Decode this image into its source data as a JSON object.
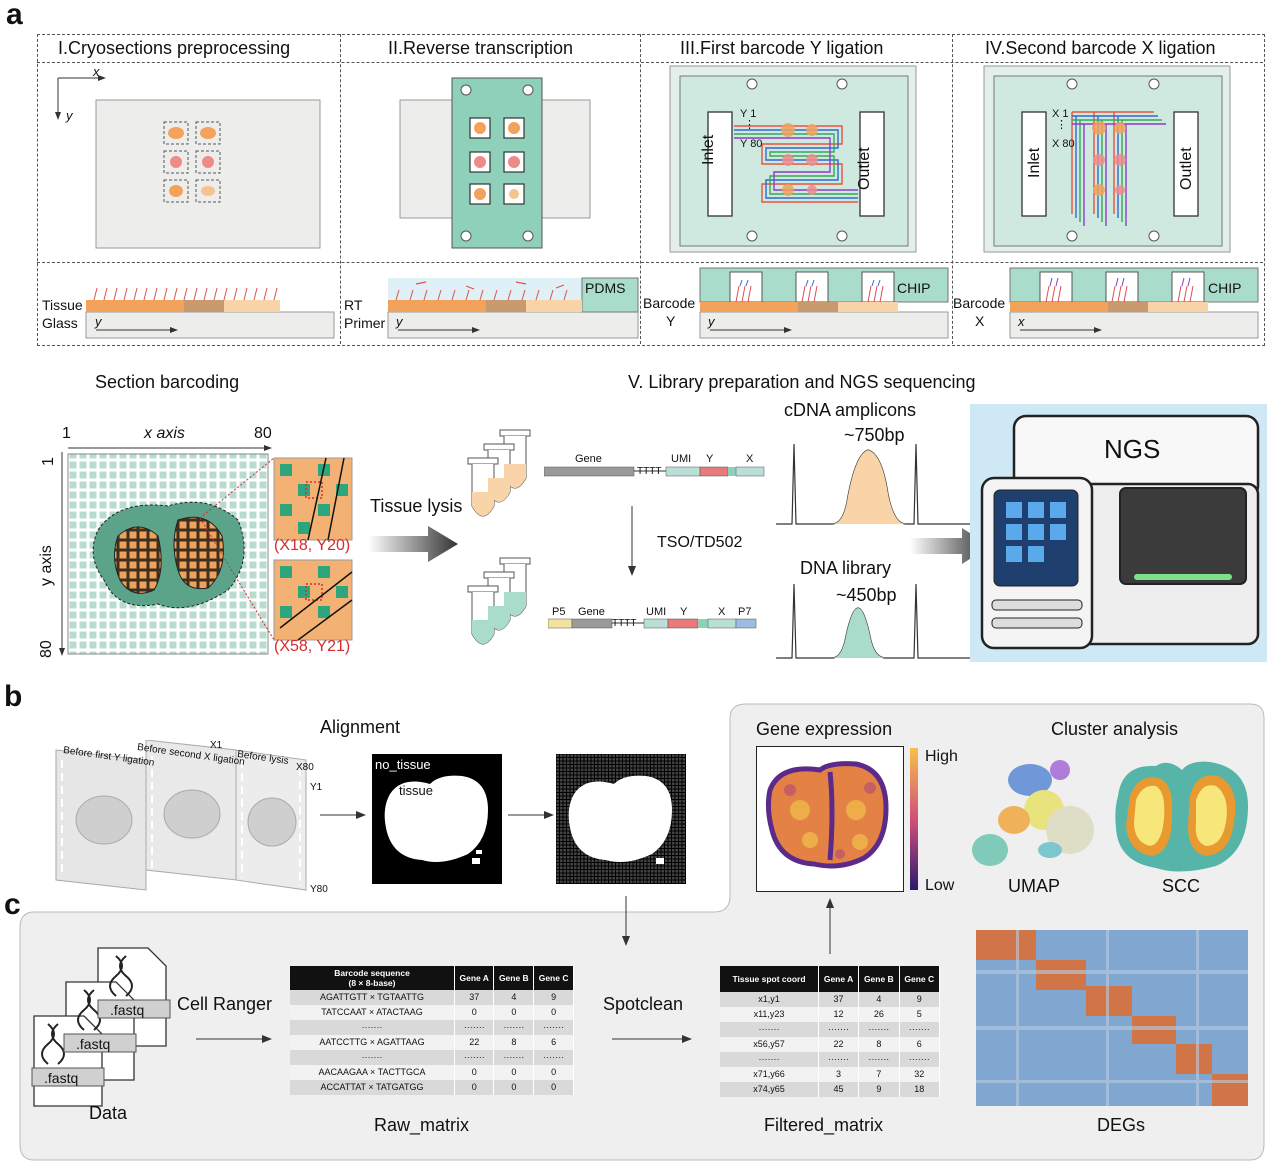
{
  "panels": {
    "a": "a",
    "b": "b",
    "c": "c"
  },
  "steps": {
    "s1": "I.Cryosections preprocessing",
    "s2": "II.Reverse transcription",
    "s3": "III.First barcode Y ligation",
    "s4": "IV.Second barcode X ligation"
  },
  "step1": {
    "x": "x",
    "y": "y",
    "tissue": "Tissue",
    "glass": "Glass",
    "yaxis": "y"
  },
  "step2": {
    "rt": "RT",
    "primer": "Primer",
    "pdms": "PDMS",
    "yaxis": "y"
  },
  "step3": {
    "y1": "Y 1",
    "dots": "⋮",
    "y80": "Y 80",
    "inlet": "Inlet",
    "outlet": "Outlet",
    "barcode": "Barcode",
    "bl": "Y",
    "chip": "CHIP",
    "yaxis": "y"
  },
  "step4": {
    "x1": "X 1",
    "dots": "⋮",
    "x80": "X 80",
    "inlet": "Inlet",
    "outlet": "Outlet",
    "barcode": "Barcode",
    "bl": "X",
    "chip": "CHIP",
    "xaxis": "x"
  },
  "section": {
    "title": "Section barcoding",
    "x_start": "1",
    "x_label": "x axis",
    "x_end": "80",
    "y_start": "1",
    "y_label": "y axis",
    "y_end": "80",
    "coord1": "(X18, Y20)",
    "coord2": "(X58, Y21)"
  },
  "library": {
    "title": "V. Library preparation and NGS sequencing",
    "lysis": "Tissue lysis",
    "gene": "Gene",
    "tttt": "TTTT",
    "umi": "UMI",
    "y": "Y",
    "x": "X",
    "tso": "TSO/TD502",
    "p5": "P5",
    "p7": "P7",
    "cdna": "cDNA amplicons",
    "cdna_bp": "~750bp",
    "dna": "DNA library",
    "dna_bp": "~450bp",
    "ngs": "NGS"
  },
  "alignment": {
    "title": "Alignment",
    "l1": "Before first Y ligation",
    "l2": "Before second X ligation",
    "l3": "Before lysis",
    "x1": "X1",
    "x80": "X80",
    "y1": "Y1",
    "y80": "Y80",
    "no_tissue": "no_tissue",
    "tissue": "tissue"
  },
  "expression": {
    "title": "Gene expression",
    "high": "High",
    "low": "Low"
  },
  "cluster": {
    "title": "Cluster analysis",
    "umap": "UMAP",
    "scc": "SCC"
  },
  "data": {
    "file": ".fastq",
    "label": "Data",
    "cellranger": "Cell Ranger",
    "spotclean": "Spotclean"
  },
  "raw_matrix": {
    "label": "Raw_matrix",
    "headers": [
      "Barcode sequence\n(8 × 8-base)",
      "Gene A",
      "Gene B",
      "Gene C"
    ],
    "rows": [
      [
        "AGATTGTT × TGTAATTG",
        "37",
        "4",
        "9"
      ],
      [
        "TATCCAAT × ATACTAAG",
        "0",
        "0",
        "0"
      ],
      [
        "·······",
        "·······",
        "·······",
        "·······"
      ],
      [
        "AATCCTTG × AGATTAAG",
        "22",
        "8",
        "6"
      ],
      [
        "·······",
        "·······",
        "·······",
        "·······"
      ],
      [
        "AACAAGAA × TACTTGCA",
        "0",
        "0",
        "0"
      ],
      [
        "ACCATTAT × TATGATGG",
        "0",
        "0",
        "0"
      ]
    ]
  },
  "filtered_matrix": {
    "label": "Filtered_matrix",
    "headers": [
      "Tissue spot coord",
      "Gene A",
      "Gene B",
      "Gene C"
    ],
    "rows": [
      [
        "x1,y1",
        "37",
        "4",
        "9"
      ],
      [
        "x11,y23",
        "12",
        "26",
        "5"
      ],
      [
        "·······",
        "·······",
        "·······",
        "·······"
      ],
      [
        "x56,y57",
        "22",
        "8",
        "6"
      ],
      [
        "·······",
        "·······",
        "·······",
        "·······"
      ],
      [
        "x71,y66",
        "3",
        "7",
        "32"
      ],
      [
        "x74,y65",
        "45",
        "9",
        "18"
      ]
    ]
  },
  "degs": {
    "label": "DEGs"
  },
  "colors": {
    "teal": "#9ed6c4",
    "orange": "#f3a25c",
    "tan": "#c89a6e",
    "chip": "#a9dccb",
    "ngs_bg": "#cfe8f6"
  }
}
